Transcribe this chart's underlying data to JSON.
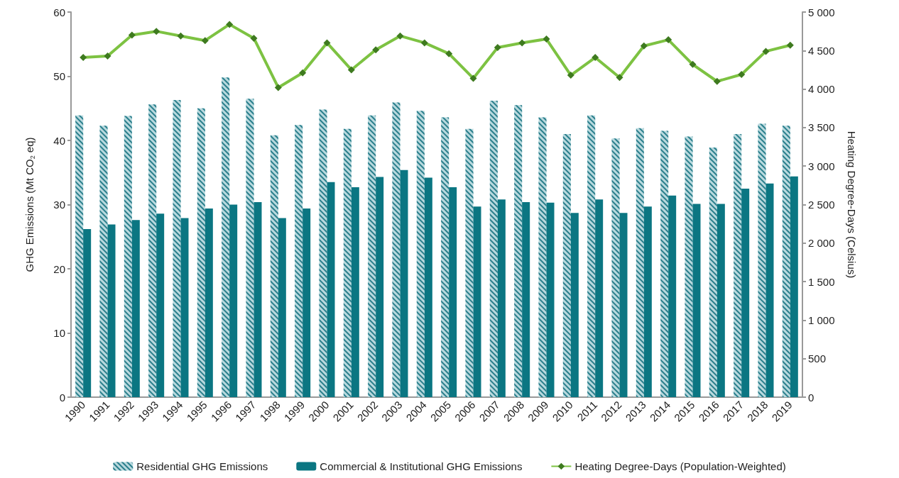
{
  "chart_data": {
    "type": "bar",
    "categories": [
      "1990",
      "1991",
      "1992",
      "1993",
      "1994",
      "1995",
      "1996",
      "1997",
      "1998",
      "1999",
      "2000",
      "2001",
      "2002",
      "2003",
      "2004",
      "2005",
      "2006",
      "2007",
      "2008",
      "2009",
      "2010",
      "2011",
      "2012",
      "2013",
      "2014",
      "2015",
      "2016",
      "2017",
      "2018",
      "2019"
    ],
    "ylabel": "GHG Emissions (Mt CO$_{2}$ eq)",
    "y2label": "Heating Degree-Days (Celsius)",
    "ylim": [
      0,
      60
    ],
    "yticks": [
      0,
      10,
      20,
      30,
      40,
      50,
      60
    ],
    "y2lim": [
      0,
      5000
    ],
    "y2ticks": [
      0,
      500,
      {
        "value": 1000,
        "label": "1 000"
      },
      {
        "value": 1500,
        "label": "1 500"
      },
      {
        "value": 2000,
        "label": "2 000"
      },
      {
        "value": 2500,
        "label": "2 500"
      },
      {
        "value": 3000,
        "label": "3 000"
      },
      {
        "value": 3500,
        "label": "3 500"
      },
      {
        "value": 4000,
        "label": "4 000"
      },
      {
        "value": 4500,
        "label": "4 500"
      },
      {
        "value": 5000,
        "label": "5 000"
      }
    ],
    "grid": false,
    "legend": "bottom",
    "marker": "diamond",
    "series": [
      {
        "name": "Residential GHG Emissions",
        "color": "#b9d9de",
        "values": [
          43.9,
          42.3,
          43.8,
          45.6,
          46.3,
          45.0,
          49.8,
          46.5,
          40.8,
          42.4,
          44.8,
          41.8,
          43.9,
          45.9,
          44.6,
          43.6,
          41.8,
          46.2,
          45.5,
          43.6,
          41.0,
          43.9,
          40.3,
          41.9,
          41.5,
          40.6,
          38.9,
          41.0,
          42.6,
          42.3
        ]
      },
      {
        "name": "Commercial & Institutional GHG Emissions",
        "color": "#0b7682",
        "values": [
          26.2,
          26.9,
          27.6,
          28.6,
          27.9,
          29.4,
          30.0,
          30.4,
          27.9,
          29.4,
          33.5,
          32.7,
          34.3,
          35.4,
          34.2,
          32.7,
          29.7,
          30.8,
          30.4,
          30.3,
          28.7,
          30.8,
          28.7,
          29.7,
          31.4,
          30.1,
          30.1,
          32.5,
          33.3,
          34.4
        ]
      },
      {
        "name": "Heating Degree-Days (Population-Weighted)",
        "type": "line",
        "axis": "y2",
        "color": "#7dc242",
        "values": [
          4410,
          4430,
          4700,
          4750,
          4690,
          4630,
          4840,
          4660,
          4020,
          4210,
          4600,
          4250,
          4510,
          4690,
          4600,
          4460,
          4140,
          4540,
          4600,
          4650,
          4180,
          4410,
          4150,
          4560,
          4640,
          4320,
          4100,
          4190,
          4490,
          4570
        ]
      }
    ]
  }
}
